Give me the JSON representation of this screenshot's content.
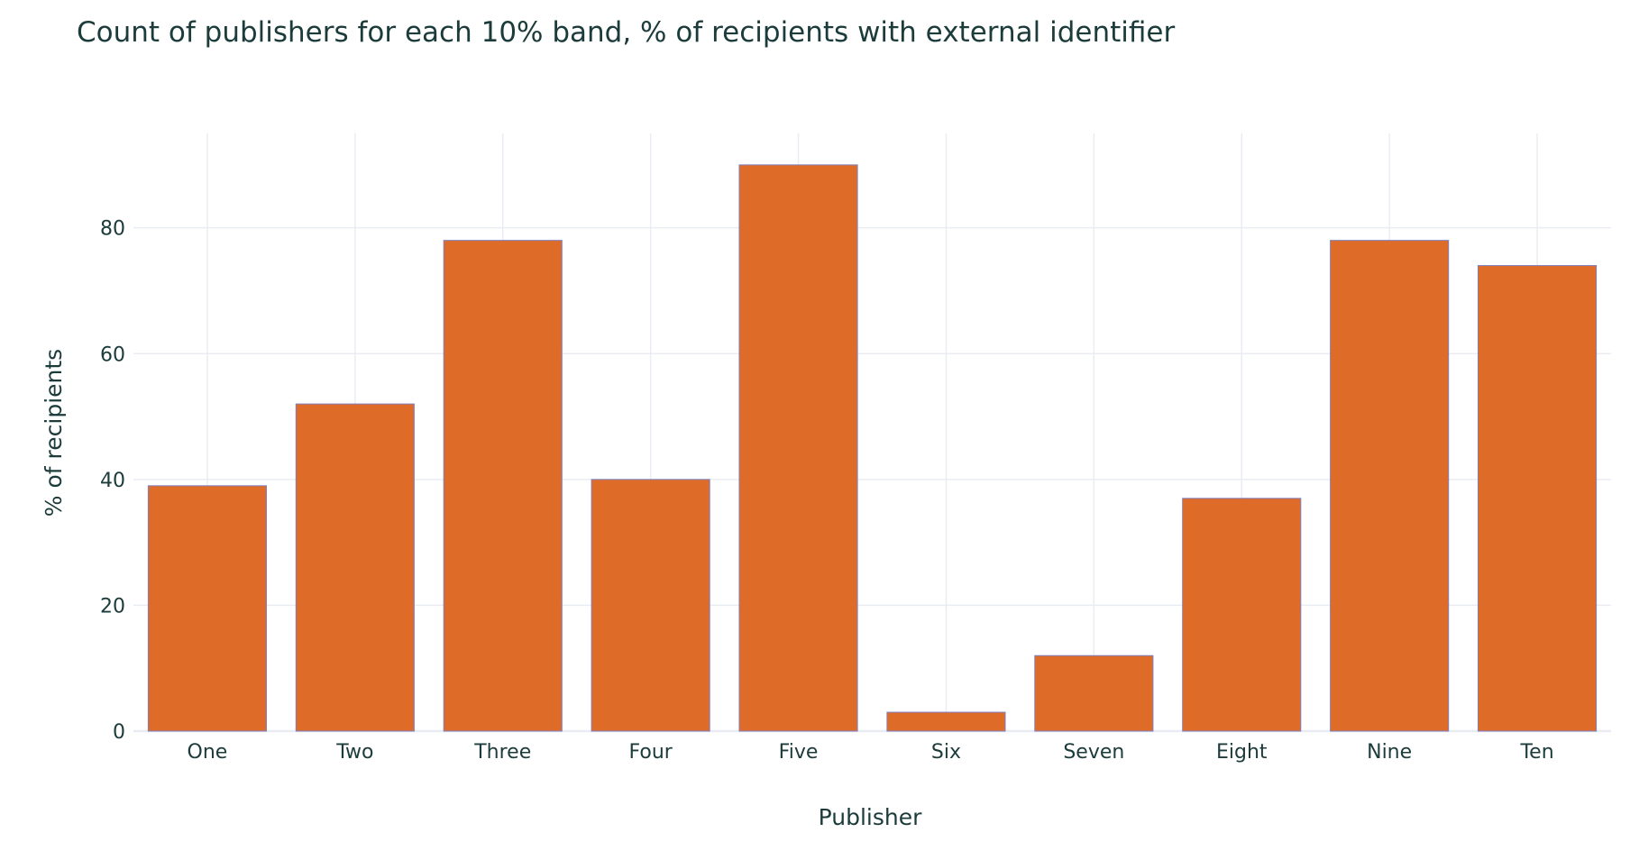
{
  "chart_data": {
    "type": "bar",
    "title": "Count of publishers for each 10% band, % of recipients with external identifier",
    "xlabel": "Publisher",
    "ylabel": "% of recipients",
    "categories": [
      "One",
      "Two",
      "Three",
      "Four",
      "Five",
      "Six",
      "Seven",
      "Eight",
      "Nine",
      "Ten"
    ],
    "values": [
      39,
      52,
      78,
      40,
      90,
      3,
      12,
      37,
      78,
      74
    ],
    "ylim": [
      0,
      95
    ],
    "yticks": [
      0,
      20,
      40,
      60,
      80
    ],
    "grid": true,
    "legend": "none",
    "bar_color": "#de6c28"
  }
}
